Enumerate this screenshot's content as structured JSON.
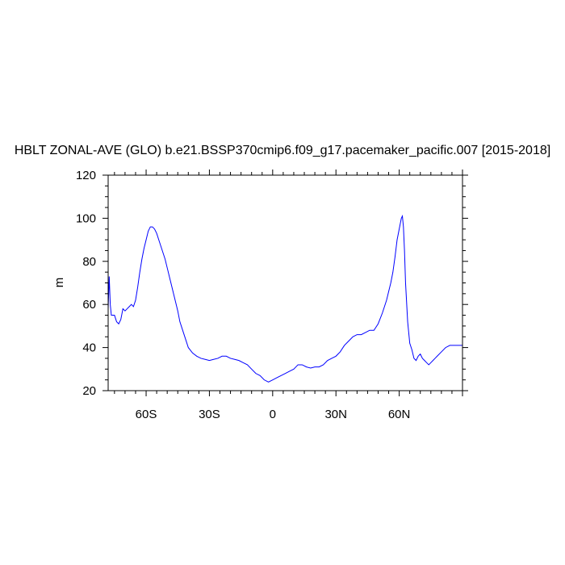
{
  "chart_data": {
    "type": "line",
    "title": "HBLT ZONAL-AVE (GLO) b.e21.BSSP370cmip6.f09_g17.pacemaker_pacific.007 [2015-2018]",
    "xlabel": "",
    "ylabel": "m",
    "xlim": [
      -78,
      90
    ],
    "ylim": [
      20,
      120
    ],
    "x_ticks": [
      -60,
      -30,
      0,
      30,
      60
    ],
    "x_tick_labels": [
      "60S",
      "30S",
      "0",
      "30N",
      "60N"
    ],
    "y_ticks": [
      20,
      40,
      60,
      80,
      100,
      120
    ],
    "y_tick_labels": [
      "20",
      "40",
      "60",
      "80",
      "100",
      "120"
    ],
    "grid": false,
    "line_color": "#0000ff",
    "series": [
      {
        "x": [
          -78,
          -77.5,
          -77,
          -76.5,
          -76,
          -75,
          -74,
          -73,
          -72,
          -71,
          -70,
          -69,
          -68,
          -67,
          -66,
          -65,
          -64,
          -63,
          -62,
          -61,
          -60,
          -59,
          -58,
          -57,
          -56,
          -55,
          -54,
          -53,
          -52,
          -51,
          -50,
          -49,
          -48,
          -47,
          -46,
          -45,
          -44,
          -43,
          -42,
          -41,
          -40,
          -38,
          -36,
          -34,
          -32,
          -30,
          -28,
          -26,
          -24,
          -22,
          -20,
          -18,
          -16,
          -14,
          -12,
          -10,
          -8,
          -6,
          -4,
          -2,
          0,
          2,
          4,
          6,
          8,
          10,
          12,
          14,
          16,
          18,
          20,
          22,
          24,
          26,
          28,
          30,
          32,
          34,
          36,
          38,
          40,
          42,
          44,
          46,
          48,
          50,
          52,
          53,
          54,
          55,
          56,
          57,
          58,
          59,
          60,
          61,
          61.5,
          62,
          62.5,
          63,
          64,
          65,
          66,
          67,
          68,
          69,
          70,
          71,
          72,
          73,
          74,
          75,
          76,
          77,
          78,
          80,
          82,
          84,
          86,
          88,
          90
        ],
        "values": [
          58,
          73,
          60,
          55,
          55,
          55,
          52,
          51,
          53,
          58,
          57,
          58,
          59,
          60,
          59,
          62,
          68,
          75,
          81,
          86,
          90,
          94,
          96,
          96,
          95,
          93,
          90,
          87,
          84,
          81,
          77,
          73,
          69,
          65,
          61,
          57,
          52,
          49,
          46,
          43,
          40,
          37.5,
          36,
          35,
          34.5,
          34,
          34.5,
          35,
          36,
          36,
          35,
          34.5,
          34,
          33,
          32,
          30,
          28,
          27,
          25,
          24,
          25,
          26,
          27,
          28,
          29,
          30,
          32,
          32,
          31,
          30.5,
          31,
          31,
          32,
          34,
          35,
          36,
          38,
          41,
          43,
          45,
          46,
          46,
          47,
          48,
          48,
          51,
          56,
          59,
          62,
          66,
          70,
          75,
          82,
          90,
          95,
          100,
          101,
          96,
          85,
          70,
          52,
          42,
          39,
          35,
          34,
          36,
          37,
          35,
          34,
          33,
          32,
          33,
          34,
          35,
          36,
          38,
          40,
          41,
          41,
          41,
          41
        ]
      }
    ]
  }
}
